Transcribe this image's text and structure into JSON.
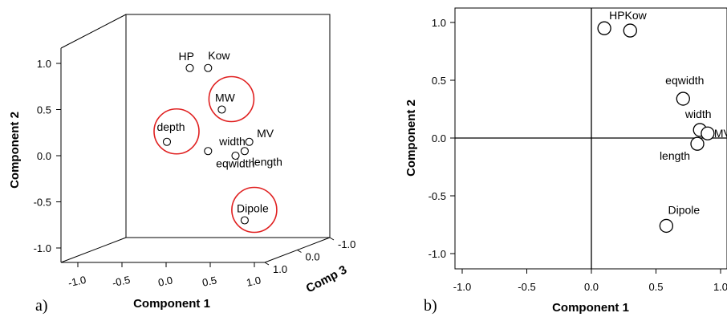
{
  "chart_data": [
    {
      "panel_label": "a)",
      "type": "scatter",
      "projection": "3d",
      "xlabel": "Component 1",
      "ylabel": "Component 2",
      "zlabel": "Comp 3",
      "x_ticks": [
        "-1.0",
        "-0.5",
        "0.0",
        "0.5",
        "1.0"
      ],
      "y_ticks": [
        "-1.0",
        "-0.5",
        "0.0",
        "0.5",
        "1.0"
      ],
      "z_ticks": [
        "1.0",
        "0.0",
        "-1.0"
      ],
      "points": [
        {
          "label": "HP",
          "x": 0.25,
          "y": 0.95,
          "z": 0.0,
          "highlight": false
        },
        {
          "label": "Kow",
          "x": 0.45,
          "y": 0.95,
          "z": 0.0,
          "highlight": false
        },
        {
          "label": "MW",
          "x": 0.6,
          "y": 0.5,
          "z": 0.0,
          "highlight": true
        },
        {
          "label": "depth",
          "x": 0.0,
          "y": 0.15,
          "z": 0.0,
          "highlight": true
        },
        {
          "label": "MV",
          "x": 0.9,
          "y": 0.15,
          "z": 0.0,
          "highlight": false
        },
        {
          "label": "width",
          "x": 0.75,
          "y": 0.0,
          "z": 0.0,
          "highlight": false
        },
        {
          "label": "length",
          "x": 0.85,
          "y": 0.05,
          "z": 0.0,
          "highlight": false
        },
        {
          "label": "eqwidth",
          "x": 0.45,
          "y": 0.05,
          "z": 0.0,
          "highlight": false
        },
        {
          "label": "Dipole",
          "x": 0.85,
          "y": -0.7,
          "z": 0.0,
          "highlight": true
        }
      ]
    },
    {
      "panel_label": "b)",
      "type": "scatter",
      "xlabel": "Component 1",
      "ylabel": "Component 2",
      "xlim": [
        -1.2,
        1.2
      ],
      "ylim": [
        -1.1,
        1.1
      ],
      "x_ticks": [
        "-1.0",
        "-0.5",
        "0.0",
        "0.5",
        "1.0"
      ],
      "y_ticks": [
        "1.0",
        "0.5",
        "0.0",
        "-0.5",
        "-1.0"
      ],
      "points": [
        {
          "label": "HP",
          "x": 0.1,
          "y": 0.95
        },
        {
          "label": "Kow",
          "x": 0.3,
          "y": 0.93
        },
        {
          "label": "eqwidth",
          "x": 0.71,
          "y": 0.34
        },
        {
          "label": "width",
          "x": 0.84,
          "y": 0.07
        },
        {
          "label": "MV",
          "x": 0.9,
          "y": 0.04
        },
        {
          "label": "length",
          "x": 0.82,
          "y": -0.05
        },
        {
          "label": "Dipole",
          "x": 0.58,
          "y": -0.76
        }
      ],
      "point_labels": [
        {
          "text": "HPKow"
        },
        {
          "text": "eqwidth"
        },
        {
          "text": "width"
        },
        {
          "text": "MV"
        },
        {
          "text": "length"
        },
        {
          "text": "Dipole"
        }
      ]
    }
  ]
}
